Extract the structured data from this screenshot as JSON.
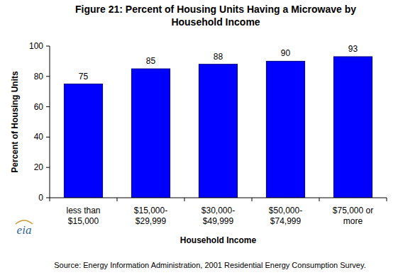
{
  "chart_data": {
    "type": "bar",
    "title": "Figure 21:  Percent of Housing Units Having a Microwave by Household Income",
    "x_label": "Household Income",
    "y_label": "Percent of Housing Units",
    "categories": [
      "less than $15,000",
      "$15,000-$29,999",
      "$30,000-$49,999",
      "$50,000-$74,999",
      "$75,000 or more"
    ],
    "values": [
      75,
      85,
      88,
      90,
      93
    ],
    "color": "#0000ff",
    "ylim": [
      0,
      100
    ],
    "yticks": [
      0,
      20,
      40,
      60,
      80,
      100
    ],
    "grid": false,
    "data_labels": true,
    "logo": "eia",
    "source": "Source:  Energy Information Administration, 2001 Residential Energy Consumption Survey."
  }
}
